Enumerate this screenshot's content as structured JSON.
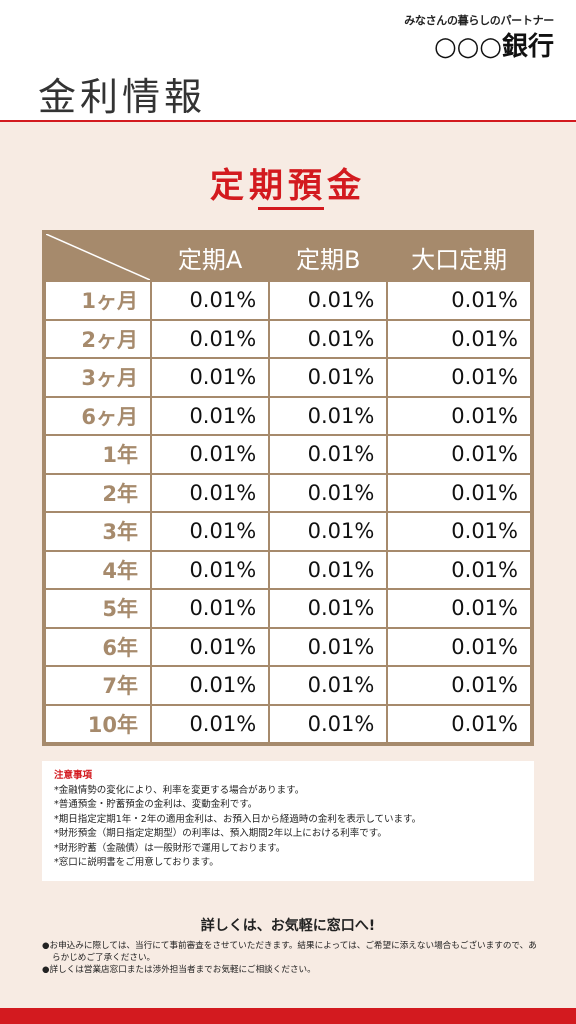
{
  "header": {
    "tagline": "みなさんの暮らしのパートナー",
    "bank_name": "○○○銀行",
    "page_title": "金利情報"
  },
  "section": {
    "title": "定期預金"
  },
  "table": {
    "columns": [
      "定期A",
      "定期B",
      "大口定期"
    ],
    "rows": [
      {
        "term": "1ヶ月",
        "values": [
          "0.01%",
          "0.01%",
          "0.01%"
        ]
      },
      {
        "term": "2ヶ月",
        "values": [
          "0.01%",
          "0.01%",
          "0.01%"
        ]
      },
      {
        "term": "3ヶ月",
        "values": [
          "0.01%",
          "0.01%",
          "0.01%"
        ]
      },
      {
        "term": "6ヶ月",
        "values": [
          "0.01%",
          "0.01%",
          "0.01%"
        ]
      },
      {
        "term": "1年",
        "values": [
          "0.01%",
          "0.01%",
          "0.01%"
        ]
      },
      {
        "term": "2年",
        "values": [
          "0.01%",
          "0.01%",
          "0.01%"
        ]
      },
      {
        "term": "3年",
        "values": [
          "0.01%",
          "0.01%",
          "0.01%"
        ]
      },
      {
        "term": "4年",
        "values": [
          "0.01%",
          "0.01%",
          "0.01%"
        ]
      },
      {
        "term": "5年",
        "values": [
          "0.01%",
          "0.01%",
          "0.01%"
        ]
      },
      {
        "term": "6年",
        "values": [
          "0.01%",
          "0.01%",
          "0.01%"
        ]
      },
      {
        "term": "7年",
        "values": [
          "0.01%",
          "0.01%",
          "0.01%"
        ]
      },
      {
        "term": "10年",
        "values": [
          "0.01%",
          "0.01%",
          "0.01%"
        ]
      }
    ]
  },
  "notes": {
    "title": "注意事項",
    "items": [
      "*金融情勢の変化により、利率を変更する場合があります。",
      "*普通預金・貯蓄預金の金利は、変動金利です。",
      "*期日指定定期1年・2年の適用金利は、お預入日から経過時の金利を表示しています。",
      "*財形預金（期日指定定期型）の利率は、預入期間2年以上における利率です。",
      "*財形貯蓄（金融債）は一般財形で運用しております。",
      "*窓口に説明書をご用意しております。"
    ]
  },
  "contact": {
    "title": "詳しくは、お気軽に窓口へ!",
    "items": [
      "●お申込みに際しては、当行にて事前審査をさせていただきます。結果によっては、ご希望に添えない場合もございますので、あらかじめご了承ください。",
      "●詳しくは営業店窓口または渉外担当者までお気軽にご相談ください。"
    ]
  },
  "colors": {
    "accent_red": "#d31a1f",
    "table_brown": "#a68a6c",
    "background": "#f7ebe3"
  }
}
